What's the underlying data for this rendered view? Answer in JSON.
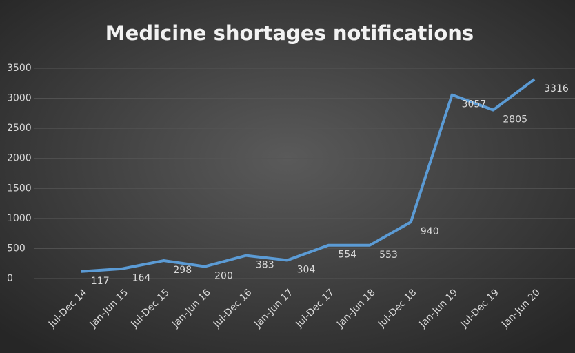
{
  "chart_data": {
    "type": "line",
    "title": "Medicine shortages notifications",
    "categories": [
      "Jul-Dec 14",
      "Jan-Jun 15",
      "Jul-Dec 15",
      "Jan-Jun 16",
      "Jul-Dec 16",
      "Jan-Jun 17",
      "Jul-Dec 17",
      "Jan-Jun 18",
      "Jul-Dec 18",
      "Jan-Jun 19",
      "Jul-Dec 19",
      "Jan-Jun 20"
    ],
    "values": [
      117,
      164,
      298,
      200,
      383,
      304,
      554,
      553,
      940,
      3057,
      2805,
      3316
    ],
    "color": "#5b9bd5",
    "ylim": [
      0,
      3500
    ],
    "yticks": [
      0,
      500,
      1000,
      1500,
      2000,
      2500,
      3000,
      3500
    ],
    "grid": true
  }
}
